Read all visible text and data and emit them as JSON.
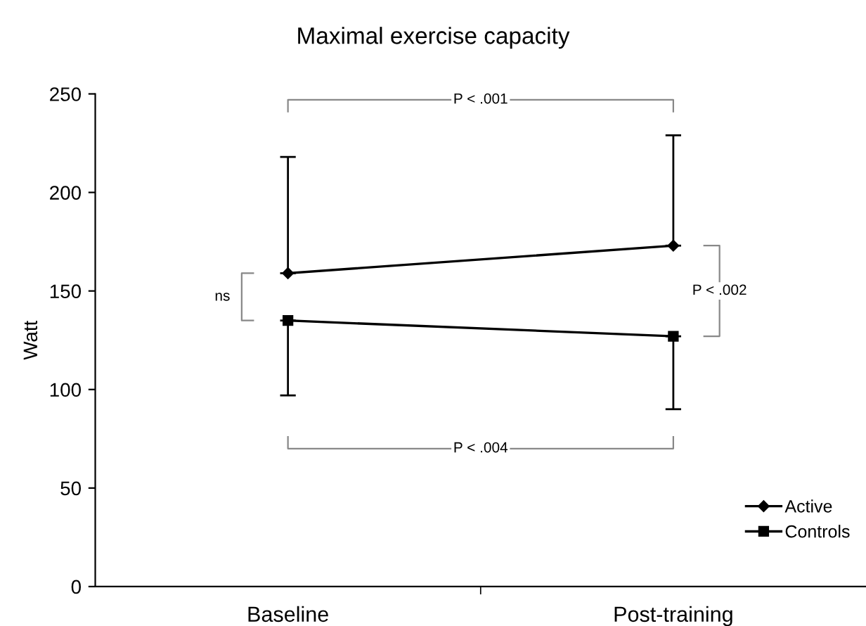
{
  "chart_data": {
    "type": "line",
    "title": "Maximal exercise capacity",
    "ylabel": "Watt",
    "categories": [
      "Baseline",
      "Post-training"
    ],
    "series": [
      {
        "name": "Active",
        "color": "#000000",
        "marker": "diamond",
        "values": [
          159,
          173
        ],
        "errors": [
          [
            159,
            218
          ],
          [
            173,
            229
          ]
        ]
      },
      {
        "name": "Controls",
        "color": "#000000",
        "marker": "square",
        "values": [
          135,
          127
        ],
        "errors": [
          [
            97,
            135
          ],
          [
            90,
            127
          ]
        ]
      }
    ],
    "ylim": [
      0,
      250
    ],
    "yticks": [
      0,
      50,
      100,
      150,
      200,
      250
    ],
    "grid": false,
    "legend": "bottom right",
    "annotations": [
      "P < .001",
      "P < .004",
      "P < .002",
      "ns"
    ]
  }
}
